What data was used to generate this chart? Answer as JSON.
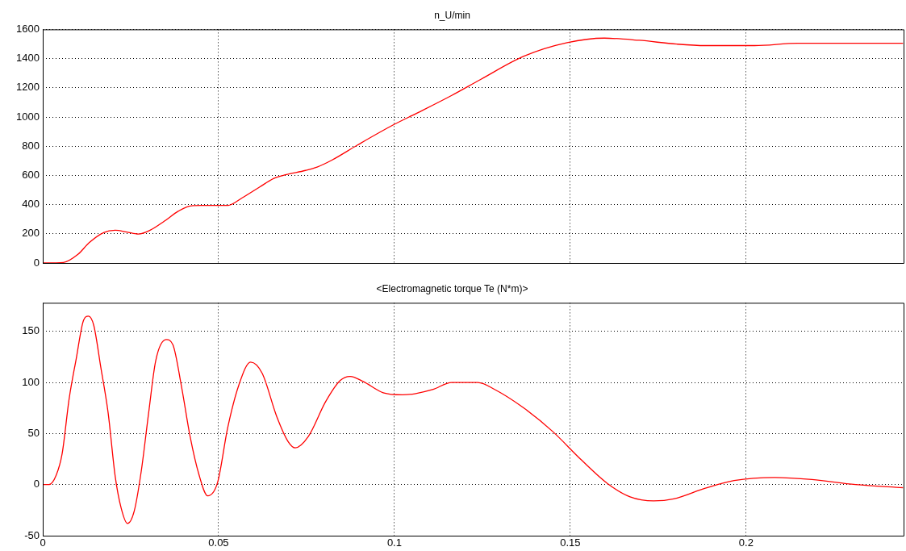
{
  "chart_data": [
    {
      "type": "line",
      "title": "n_U/min",
      "color": "#ff0000",
      "marker": "none",
      "line_style": "solid",
      "grid": true,
      "tick_labels": "y",
      "xlim": [
        0,
        0.245
      ],
      "xticks": [
        0,
        0.05,
        0.1,
        0.15,
        0.2
      ],
      "ylim": [
        0,
        1600
      ],
      "yticks": [
        0,
        200,
        400,
        600,
        800,
        1000,
        1200,
        1400,
        1600
      ],
      "x": [
        0,
        0.0059,
        0.01,
        0.0132,
        0.0173,
        0.0206,
        0.0239,
        0.0272,
        0.0305,
        0.0346,
        0.0386,
        0.0423,
        0.0452,
        0.0526,
        0.0567,
        0.0616,
        0.0656,
        0.069,
        0.0747,
        0.078,
        0.0821,
        0.0895,
        0.1,
        0.1067,
        0.1163,
        0.1245,
        0.1368,
        0.1491,
        0.1597,
        0.1696,
        0.1803,
        0.1884,
        0.2024,
        0.2147,
        0.2446
      ],
      "values": [
        0,
        4,
        59,
        139,
        208,
        224,
        212,
        198,
        224,
        287,
        356,
        392,
        394,
        394,
        446,
        519,
        578,
        604,
        634,
        657,
        703,
        808,
        950,
        1030,
        1148,
        1257,
        1416,
        1509,
        1540,
        1525,
        1499,
        1489,
        1489,
        1505,
        1505
      ]
    },
    {
      "type": "line",
      "title": "<Electromagnetic torque Te (N*m)>",
      "color": "#ff0000",
      "marker": "none",
      "line_style": "solid",
      "grid": true,
      "xlim": [
        0,
        0.245
      ],
      "xticks": [
        0,
        0.05,
        0.1,
        0.15,
        0.2
      ],
      "ylim": [
        -50,
        178
      ],
      "yticks": [
        -50,
        0,
        50,
        100,
        150
      ],
      "x": [
        0,
        0.0018,
        0.0038,
        0.0055,
        0.0075,
        0.0095,
        0.0116,
        0.013,
        0.0145,
        0.0165,
        0.0186,
        0.0206,
        0.0223,
        0.0241,
        0.026,
        0.028,
        0.0301,
        0.0321,
        0.0351,
        0.037,
        0.0395,
        0.0419,
        0.0444,
        0.0469,
        0.0497,
        0.0526,
        0.0558,
        0.0591,
        0.0624,
        0.0665,
        0.0698,
        0.0718,
        0.0755,
        0.0804,
        0.0846,
        0.0874,
        0.0911,
        0.0968,
        0.1022,
        0.1058,
        0.1108,
        0.1163,
        0.1237,
        0.1286,
        0.1368,
        0.145,
        0.1532,
        0.1606,
        0.167,
        0.1737,
        0.1794,
        0.1884,
        0.1966,
        0.2081,
        0.2187,
        0.2311,
        0.2446
      ],
      "values": [
        0,
        0,
        9,
        30,
        84,
        123,
        161,
        165,
        156,
        115,
        70,
        8,
        -23,
        -38,
        -26,
        13,
        70,
        121,
        142,
        137,
        95,
        47,
        10,
        -11,
        2,
        56,
        98,
        120,
        109,
        67,
        42,
        36,
        47,
        81,
        102,
        106,
        101,
        90,
        88,
        89,
        93,
        100,
        100,
        93,
        75,
        52,
        24,
        1,
        -12,
        -16,
        -14,
        -3.5,
        4,
        7,
        5,
        0,
        -3
      ]
    }
  ]
}
